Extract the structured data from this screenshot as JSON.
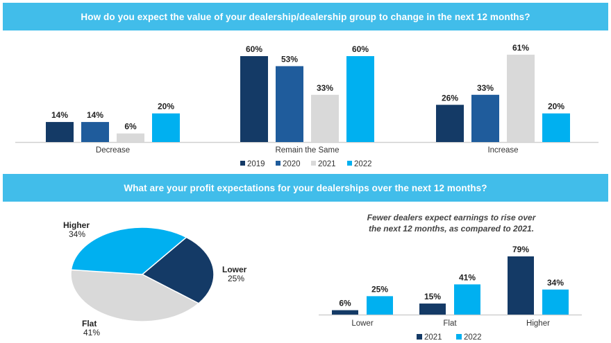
{
  "colors": {
    "banner": "#41bdea",
    "y2019": "#143a66",
    "y2020": "#1f5c9c",
    "y2021_top": "#d9d9d9",
    "y2022": "#00b0f0",
    "pie_lower": "#143a66",
    "pie_flat": "#d9d9d9",
    "pie_higher": "#00b0f0"
  },
  "chart_data": [
    {
      "type": "bar",
      "title": "How do you expect the value of your dealership/dealership  group to change in the next 12 months?",
      "categories": [
        "Decrease",
        "Remain the Same",
        "Increase"
      ],
      "series": [
        {
          "name": "2019",
          "values": [
            14,
            60,
            26
          ],
          "labels": [
            "14%",
            "60%",
            "26%"
          ]
        },
        {
          "name": "2020",
          "values": [
            14,
            53,
            33
          ],
          "labels": [
            "14%",
            "53%",
            "33%"
          ]
        },
        {
          "name": "2021",
          "values": [
            6,
            33,
            61
          ],
          "labels": [
            "6%",
            "33%",
            "61%"
          ]
        },
        {
          "name": "2022",
          "values": [
            20,
            60,
            20
          ],
          "labels": [
            "20%",
            "60%",
            "20%"
          ]
        }
      ],
      "xlabel": "",
      "ylabel": "",
      "ylim": [
        0,
        65
      ],
      "grid": false,
      "legend": "bottom"
    },
    {
      "type": "pie",
      "title": "What are your profit expectations for your dealerships over the next 12 months?",
      "slices": [
        {
          "name": "Lower",
          "value": 25,
          "label": "25%"
        },
        {
          "name": "Flat",
          "value": 41,
          "label": "41%"
        },
        {
          "name": "Higher",
          "value": 34,
          "label": "34%"
        }
      ]
    },
    {
      "type": "bar",
      "title": "Fewer dealers expect earnings to rise over the next 12 months, as compared to 2021.",
      "categories": [
        "Lower",
        "Flat",
        "Higher"
      ],
      "series": [
        {
          "name": "2021",
          "values": [
            6,
            15,
            79
          ],
          "labels": [
            "6%",
            "15%",
            "79%"
          ]
        },
        {
          "name": "2022",
          "values": [
            25,
            41,
            34
          ],
          "labels": [
            "25%",
            "41%",
            "34%"
          ]
        }
      ],
      "xlabel": "",
      "ylabel": "",
      "ylim": [
        0,
        85
      ],
      "grid": false,
      "legend": "bottom"
    }
  ],
  "note_line1": "Fewer dealers expect earnings to rise over",
  "note_line2": "the next 12 months, as compared to 2021."
}
